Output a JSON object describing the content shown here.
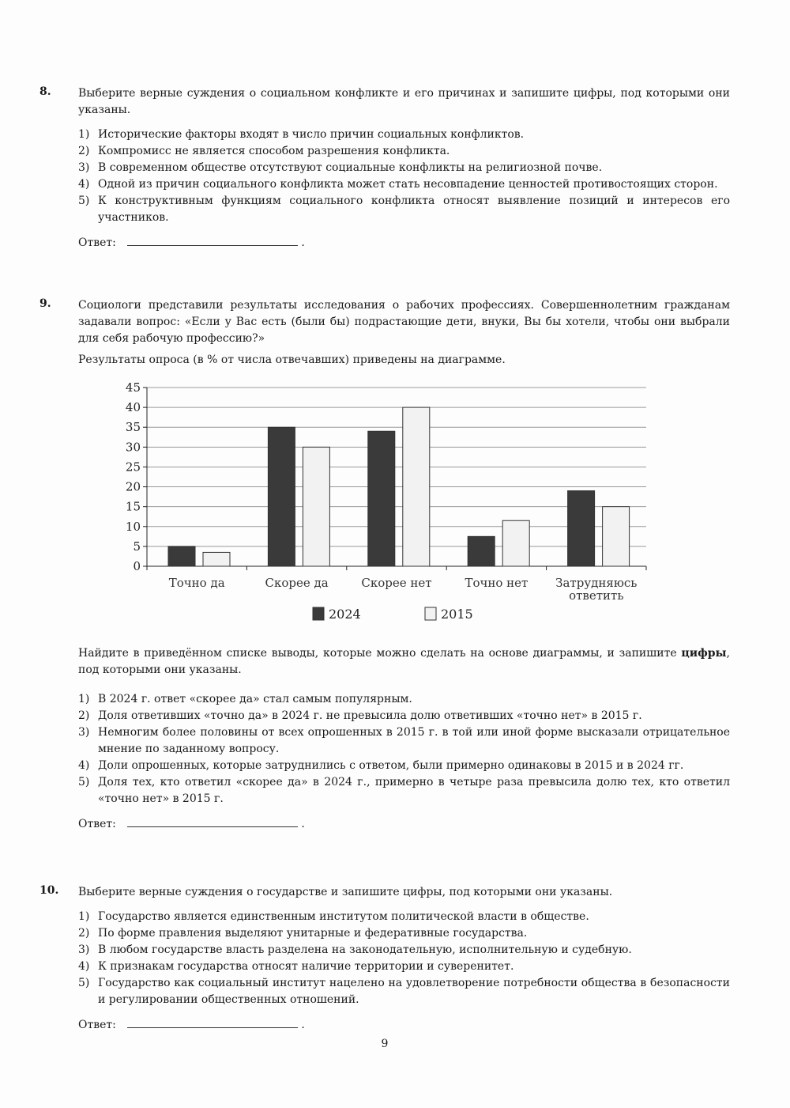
{
  "answer_label": "Ответ:",
  "answer_dot": ".",
  "q8": {
    "number": "8.",
    "text": "Выберите верные суждения о социальном конфликте и его причинах и запишите цифры, под которыми они указаны.",
    "items": [
      {
        "n": "1)",
        "t": "Исторические факторы входят в число причин социальных конфликтов."
      },
      {
        "n": "2)",
        "t": "Компромисс не является способом разрешения конфликта."
      },
      {
        "n": "3)",
        "t": "В современном обществе отсутствуют социальные конфликты на религиозной почве."
      },
      {
        "n": "4)",
        "t": "Одной из причин социального конфликта может стать несовпадение ценностей противостоящих сторон."
      },
      {
        "n": "5)",
        "t": "К конструктивным функциям социального конфликта относят выявление позиций и интересов его участников."
      }
    ]
  },
  "q9": {
    "number": "9.",
    "text": "Социологи представили результаты исследования о рабочих профессиях. Совершеннолетним гражданам задавали вопрос: «Если у Вас есть (были бы) подрастающие дети, внуки, Вы бы хотели, чтобы они выбрали для себя рабочую профессию?»",
    "text2": "Результаты опроса (в % от числа отвечавших) приведены на диаграмме.",
    "task_pre": "Найдите в приведённом списке выводы, которые можно сделать на основе диаграммы, и запишите ",
    "task_bold": "цифры",
    "task_post": ", под которыми они указаны.",
    "items": [
      {
        "n": "1)",
        "t": "В 2024 г. ответ «скорее да» стал самым популярным."
      },
      {
        "n": "2)",
        "t": "Доля ответивших «точно да» в 2024 г. не превысила долю ответивших «точно нет» в 2015 г."
      },
      {
        "n": "3)",
        "t": "Немногим более половины от всех опрошенных в 2015 г. в той или иной форме высказали отрицательное мнение по заданному вопросу."
      },
      {
        "n": "4)",
        "t": "Доли опрошенных, которые затруднились с ответом, были примерно одинаковы в 2015 и в 2024 гг."
      },
      {
        "n": "5)",
        "t": "Доля тех, кто ответил «скорее да» в 2024 г., примерно в четыре раза превысила долю тех, кто ответил «точно нет» в 2015 г."
      }
    ]
  },
  "chart_data": {
    "type": "bar",
    "categories": [
      "Точно да",
      "Скорее да",
      "Скорее нет",
      "Точно нет",
      "Затрудняюсь ответить"
    ],
    "series": [
      {
        "name": "2024",
        "values": [
          5,
          35,
          34,
          7.5,
          19
        ],
        "color": "#3a3a3a"
      },
      {
        "name": "2015",
        "values": [
          3.5,
          30,
          40,
          11.5,
          15
        ],
        "color": "#f2f2f2"
      }
    ],
    "yticks": [
      0,
      5,
      10,
      15,
      20,
      25,
      30,
      35,
      40,
      45
    ],
    "ylim": [
      0,
      45
    ],
    "grid": true,
    "legend": "bottom"
  },
  "q10": {
    "number": "10.",
    "text": "Выберите верные суждения о государстве и запишите цифры, под которыми они указаны.",
    "items": [
      {
        "n": "1)",
        "t": "Государство является единственным институтом политической власти в обществе."
      },
      {
        "n": "2)",
        "t": "По форме правления выделяют унитарные и федеративные государства."
      },
      {
        "n": "3)",
        "t": "В любом государстве власть разделена на законодательную, исполнительную и судебную."
      },
      {
        "n": "4)",
        "t": "К признакам государства относят наличие территории и суверенитет."
      },
      {
        "n": "5)",
        "t": "Государство как социальный институт нацелено на удовлетворение потребности общества в безопасности и регулировании общественных отношений."
      }
    ]
  },
  "page_number": "9"
}
